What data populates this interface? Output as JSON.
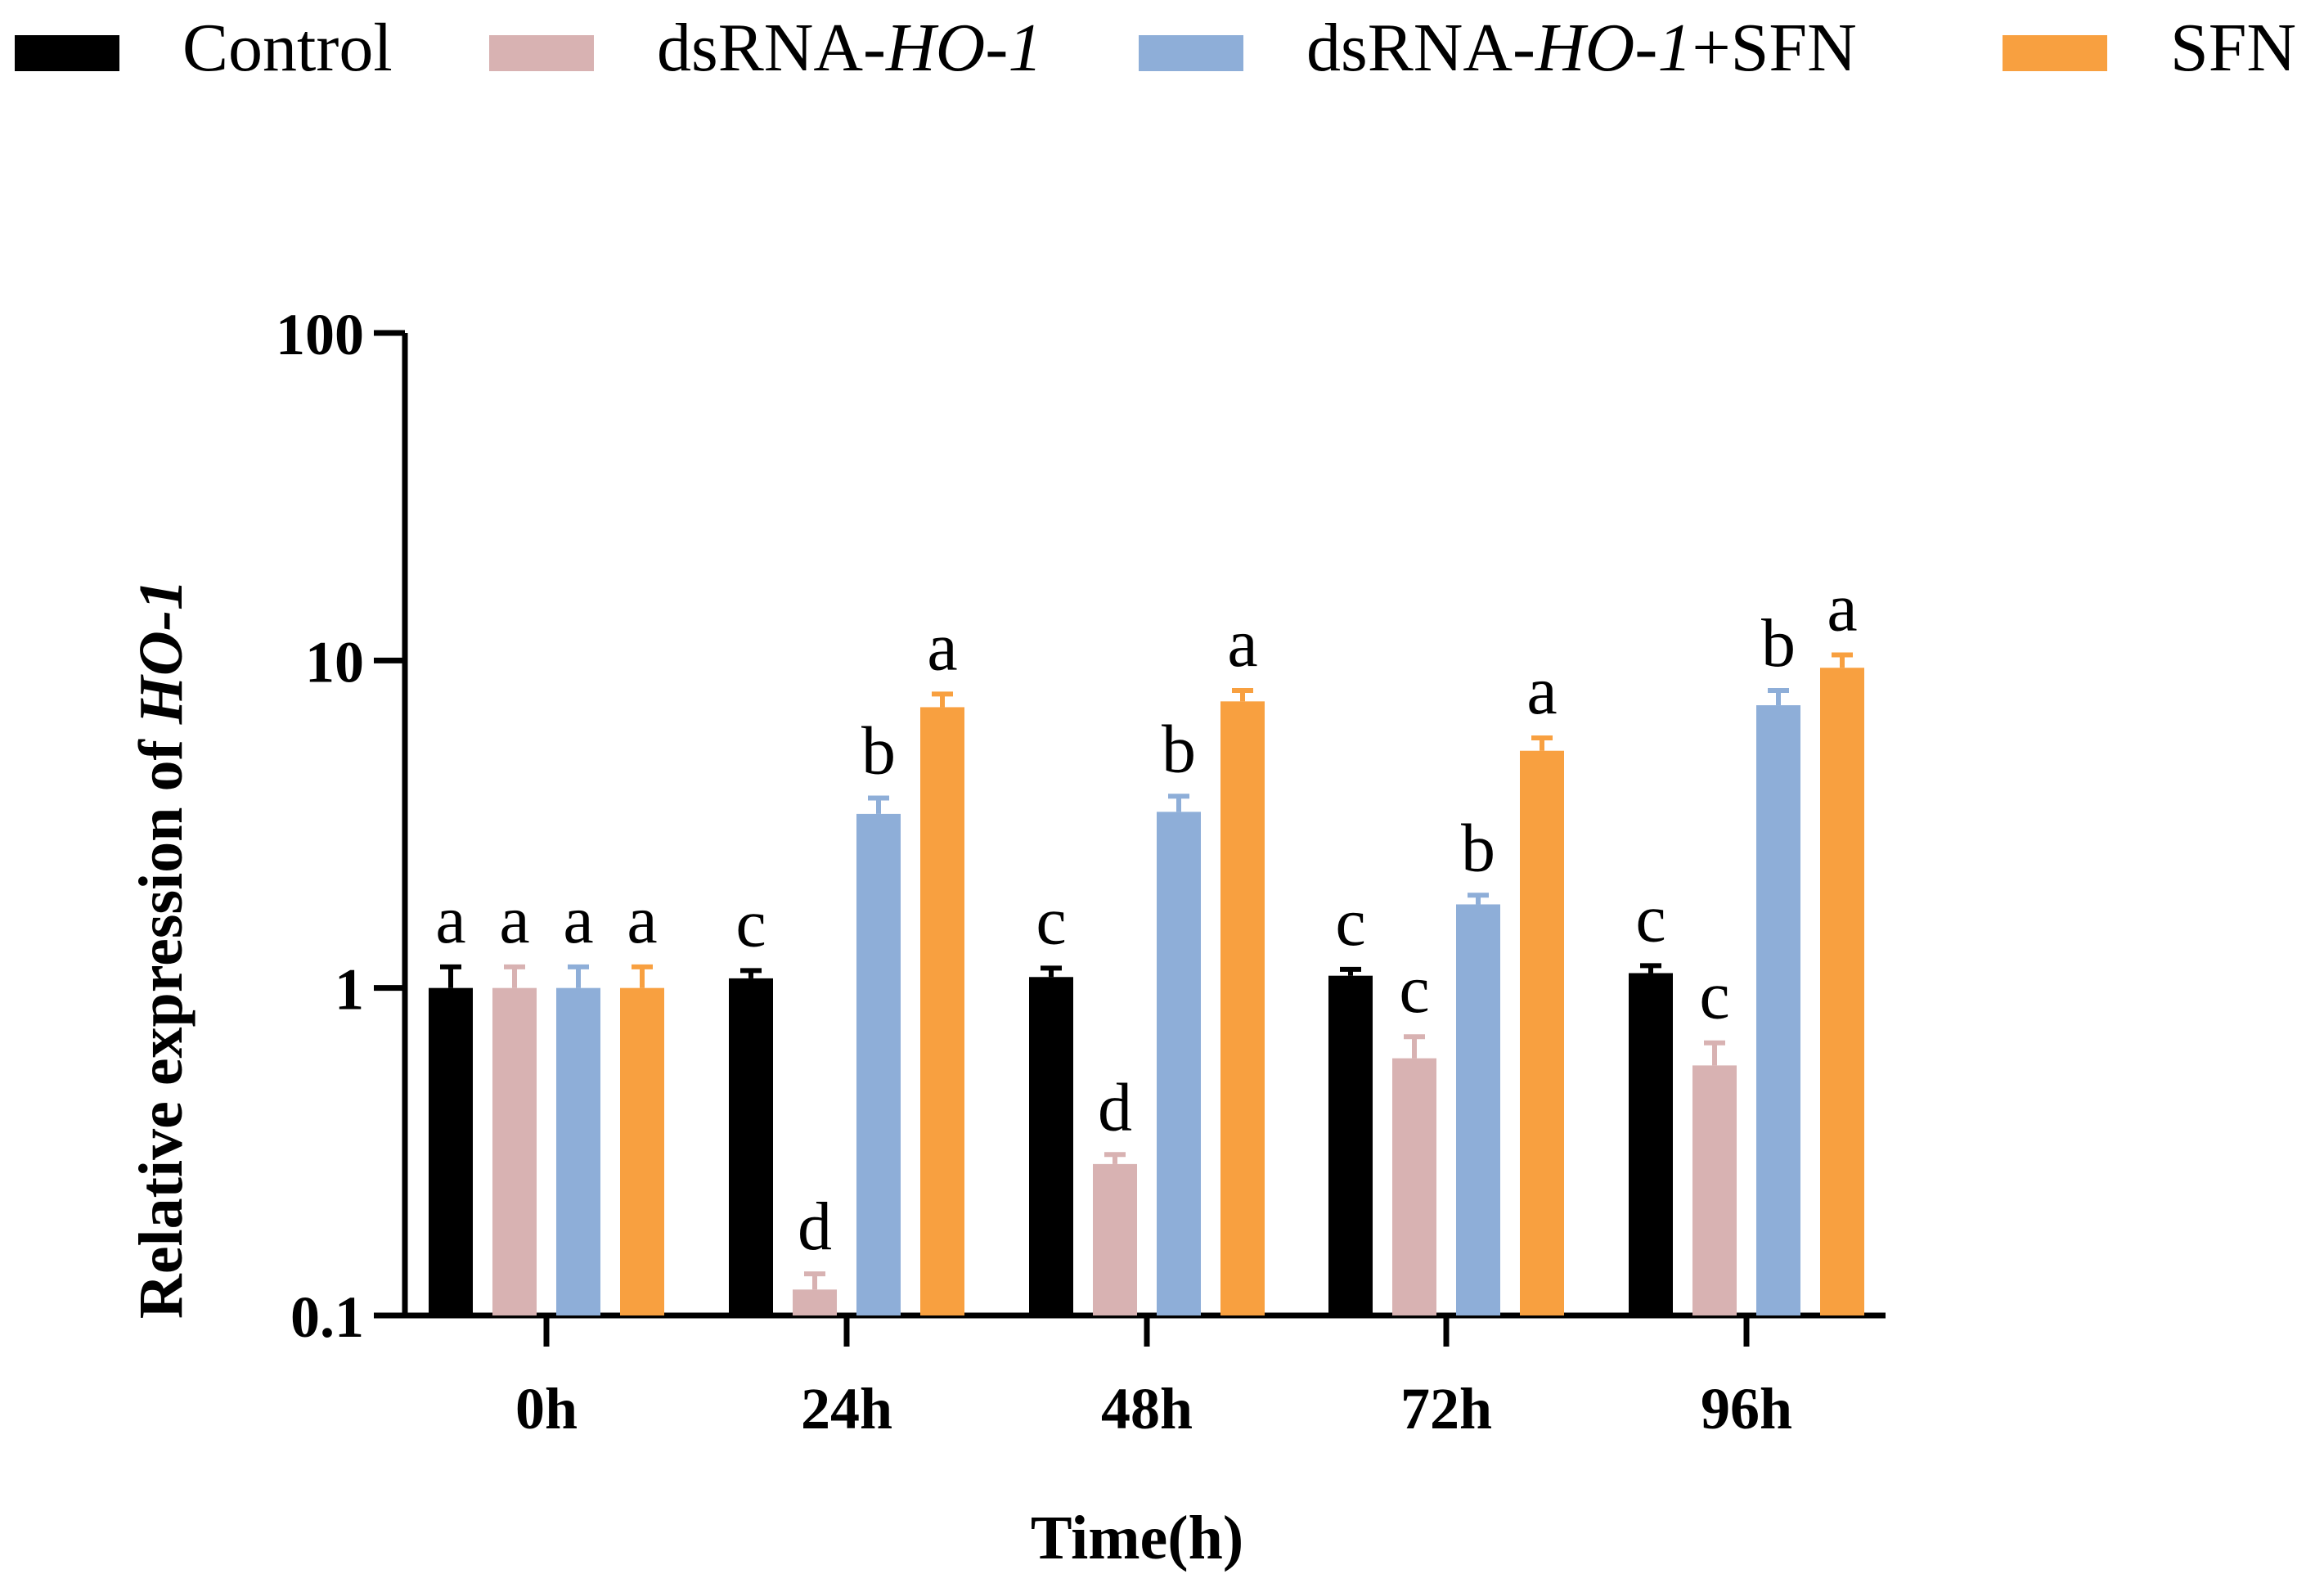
{
  "chart_data": {
    "type": "bar",
    "scale": "log",
    "ylabel": {
      "prefix": "Relative expression of ",
      "gene": "HO-1"
    },
    "xlabel": "Time(h)",
    "ylim": [
      0.1,
      100
    ],
    "yticks": [
      {
        "value": 0.1,
        "label": "0.1"
      },
      {
        "value": 1,
        "label": "1"
      },
      {
        "value": 10,
        "label": "10"
      },
      {
        "value": 100,
        "label": "100"
      }
    ],
    "categories": [
      "0h",
      "24h",
      "48h",
      "72h",
      "96h"
    ],
    "series": [
      {
        "name": "Control",
        "legend": {
          "prefix": "Control",
          "italic": "",
          "suffix": ""
        },
        "color": "#000000",
        "values": [
          1.0,
          1.07,
          1.08,
          1.09,
          1.11
        ],
        "errors": [
          0.16,
          0.06,
          0.07,
          0.05,
          0.06
        ],
        "letters": [
          "a",
          "c",
          "c",
          "c",
          "c"
        ]
      },
      {
        "name": "dsRNA-HO-1",
        "legend": {
          "prefix": "dsRNA-",
          "italic": "HO-1",
          "suffix": ""
        },
        "color": "#d8b2b2",
        "values": [
          1.0,
          0.12,
          0.29,
          0.61,
          0.58
        ],
        "errors": [
          0.16,
          0.014,
          0.02,
          0.1,
          0.1
        ],
        "letters": [
          "a",
          "d",
          "d",
          "c",
          "c"
        ]
      },
      {
        "name": "dsRNA-HO-1+SFN",
        "legend": {
          "prefix": "dsRNA-",
          "italic": "HO-1",
          "suffix": "+SFN"
        },
        "color": "#8eaed8",
        "values": [
          1.0,
          3.4,
          3.45,
          1.8,
          7.3
        ],
        "errors": [
          0.16,
          0.4,
          0.4,
          0.12,
          0.8
        ],
        "letters": [
          "a",
          "b",
          "b",
          "b",
          "b"
        ]
      },
      {
        "name": "SFN",
        "legend": {
          "prefix": "SFN",
          "italic": "",
          "suffix": ""
        },
        "color": "#f8a040",
        "values": [
          1.0,
          7.2,
          7.5,
          5.3,
          9.5
        ],
        "errors": [
          0.16,
          0.7,
          0.6,
          0.5,
          0.9
        ],
        "letters": [
          "a",
          "a",
          "a",
          "a",
          "a"
        ]
      }
    ]
  }
}
